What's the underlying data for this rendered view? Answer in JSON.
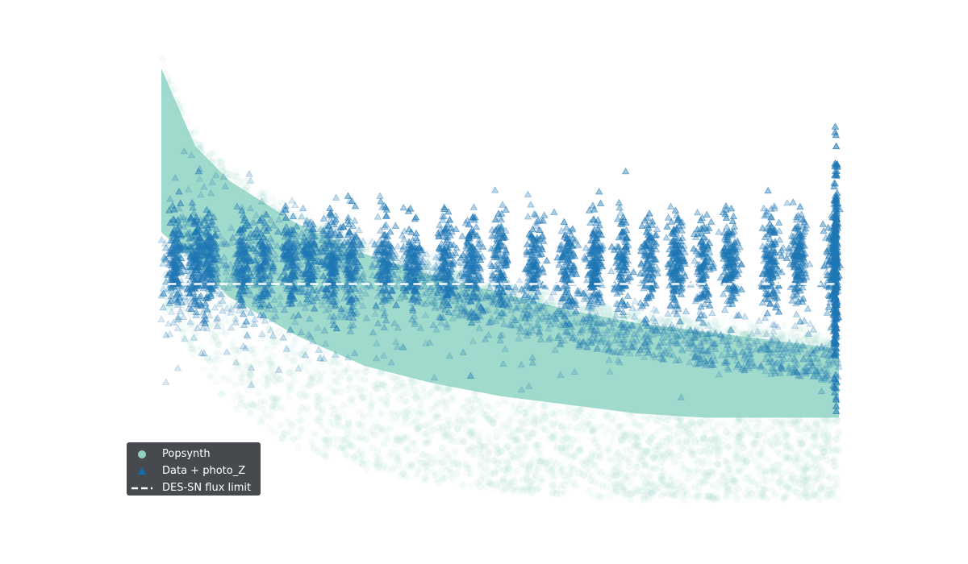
{
  "chart_data": {
    "type": "scatter",
    "title": "",
    "xlabel": "",
    "ylabel": "",
    "axes_visible": false,
    "grid": false,
    "legend_position": "lower-left",
    "series": [
      {
        "name": "Popsynth",
        "marker": "circle",
        "color": "#8fd3c3",
        "alpha": 0.06,
        "envelope": {
          "x": [
            0.0,
            0.05,
            0.1,
            0.2,
            0.3,
            0.4,
            0.5,
            0.6,
            0.7,
            0.8,
            0.9,
            1.0
          ],
          "upper": [
            1.0,
            0.82,
            0.74,
            0.64,
            0.57,
            0.52,
            0.48,
            0.44,
            0.41,
            0.39,
            0.37,
            0.35
          ],
          "core_lower": [
            0.62,
            0.55,
            0.47,
            0.38,
            0.31,
            0.27,
            0.24,
            0.22,
            0.2,
            0.19,
            0.19,
            0.19
          ],
          "sparse_lower": [
            0.45,
            0.33,
            0.22,
            0.12,
            0.07,
            0.04,
            0.02,
            0.01,
            0.0,
            0.0,
            0.0,
            0.0
          ]
        }
      },
      {
        "name": "Data + photo_Z",
        "marker": "triangle",
        "color": "#1f77b4",
        "alpha": 0.18,
        "band": {
          "center": 0.5,
          "spread": 0.1
        },
        "clusters_x": [
          0.02,
          0.05,
          0.07,
          0.12,
          0.15,
          0.19,
          0.22,
          0.25,
          0.28,
          0.33,
          0.37,
          0.42,
          0.46,
          0.5,
          0.55,
          0.6,
          0.64,
          0.68,
          0.72,
          0.76,
          0.8,
          0.84,
          0.9,
          0.94,
          0.99
        ],
        "dense_column_x": 0.995
      },
      {
        "name": "DES-SN flux limit",
        "style": "dashed",
        "color": "#ffffff",
        "y": 0.5
      }
    ]
  },
  "legend": {
    "items": [
      {
        "label": "Popsynth",
        "marker": "circle",
        "color": "#8fd3c3"
      },
      {
        "label": "Data + photo_Z",
        "marker": "triangle",
        "color": "#0b6fb4"
      },
      {
        "label": "DES-SN flux limit",
        "marker": "dash",
        "color": "#ffffff"
      }
    ]
  }
}
